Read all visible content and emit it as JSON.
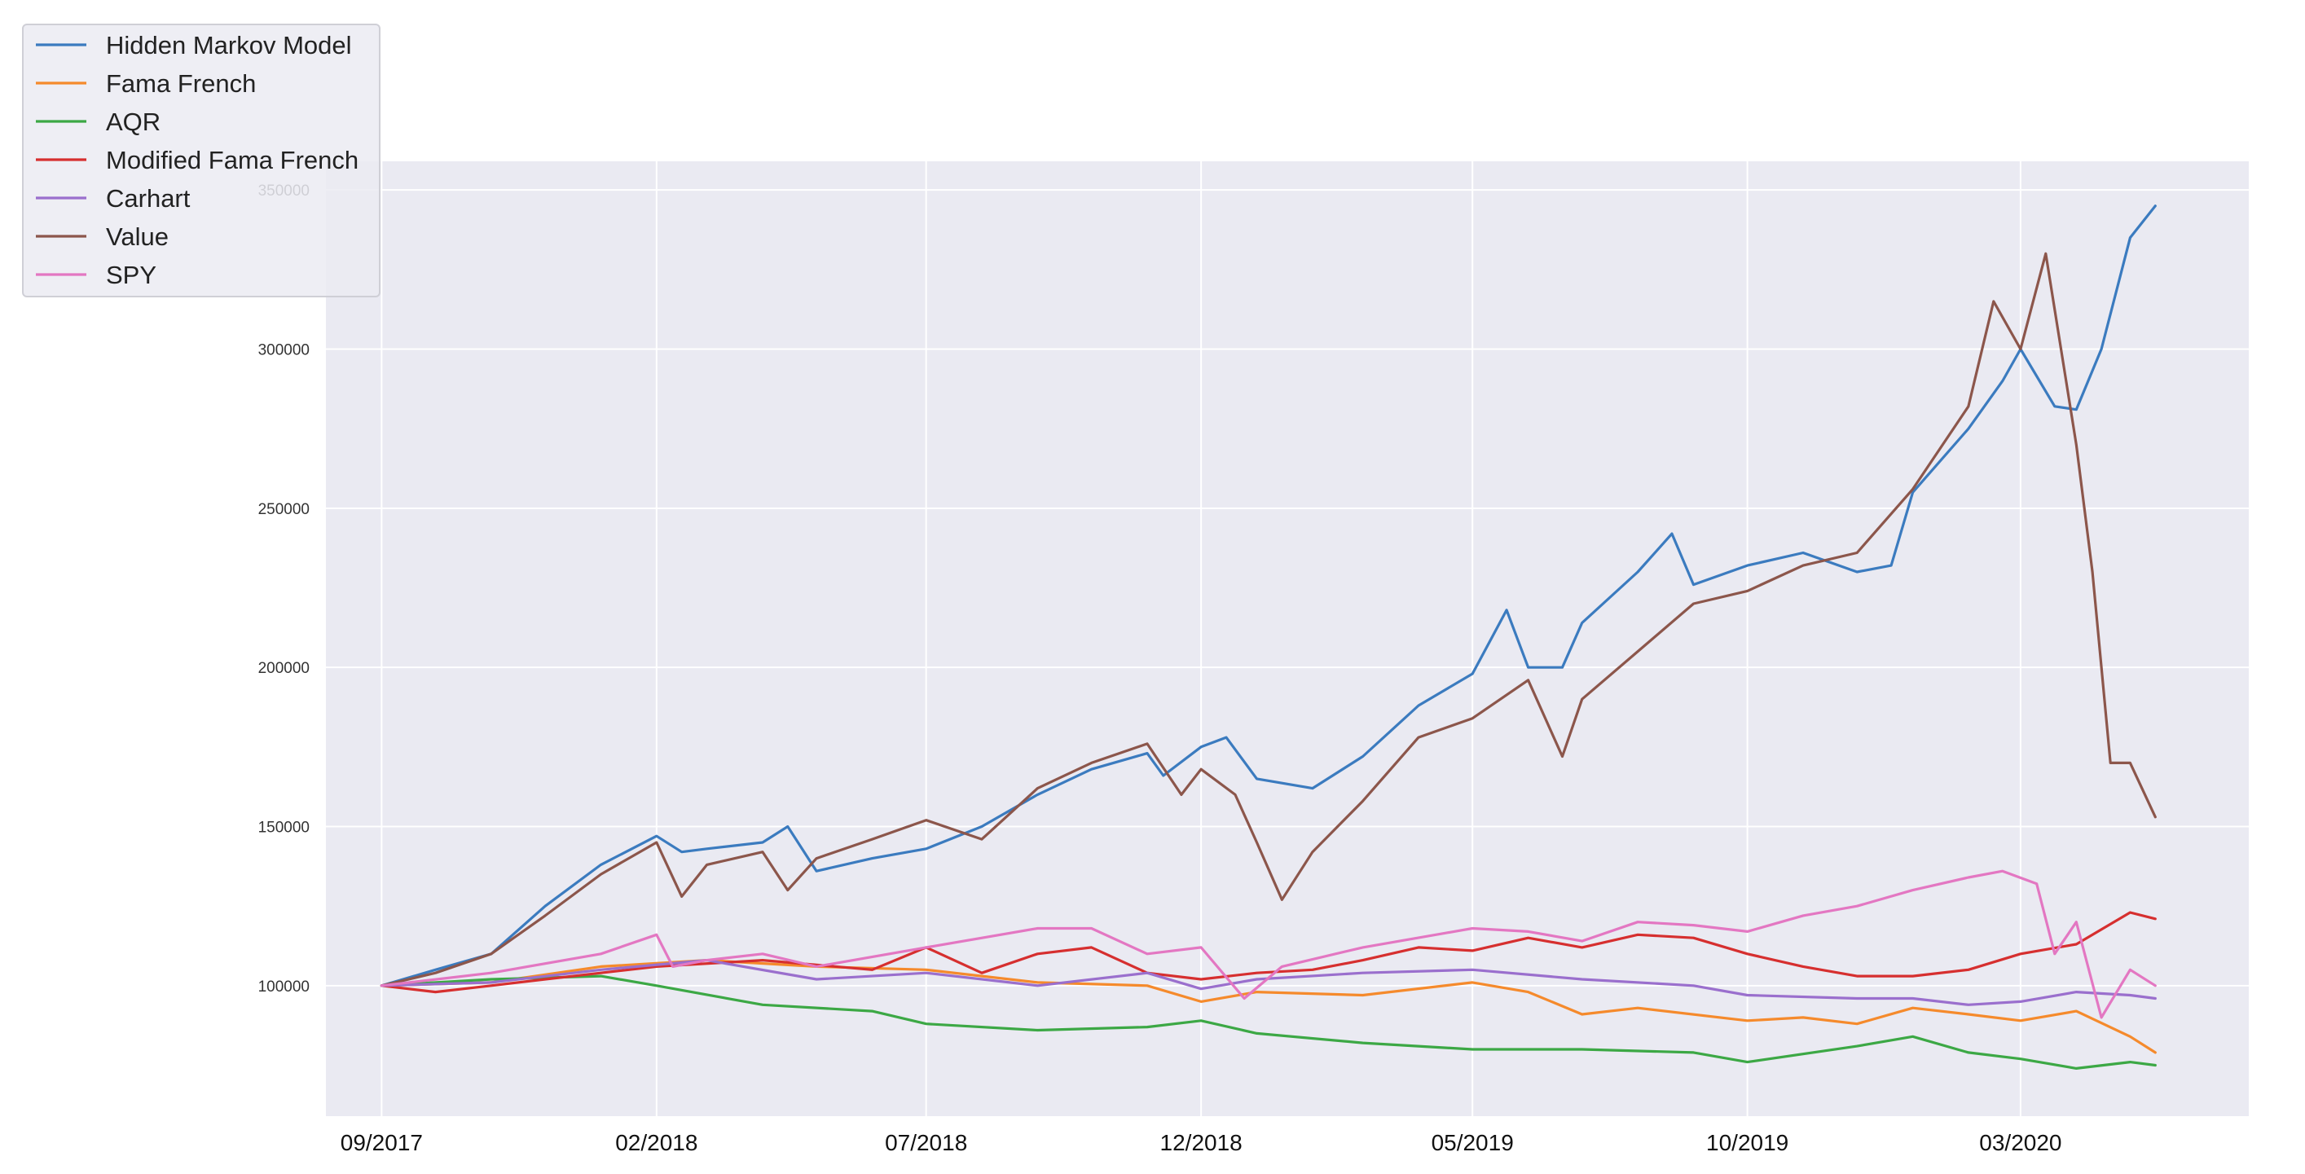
{
  "chart_data": {
    "type": "line",
    "title": "",
    "xlabel": "",
    "ylabel": "",
    "x_axis": {
      "range": [
        "2017-08-01",
        "2020-07-06"
      ],
      "ticks": [
        {
          "date": "2017-09-01",
          "label": "09/2017"
        },
        {
          "date": "2018-02-01",
          "label": "02/2018"
        },
        {
          "date": "2018-07-01",
          "label": "07/2018"
        },
        {
          "date": "2018-12-01",
          "label": "12/2018"
        },
        {
          "date": "2019-05-01",
          "label": "05/2019"
        },
        {
          "date": "2019-10-01",
          "label": "10/2019"
        },
        {
          "date": "2020-03-01",
          "label": "03/2020"
        }
      ]
    },
    "y_axis": {
      "range": [
        59000,
        359000
      ],
      "ticks": [
        {
          "value": 100000,
          "label": "100000"
        },
        {
          "value": 150000,
          "label": "150000"
        },
        {
          "value": 200000,
          "label": "200000"
        },
        {
          "value": 250000,
          "label": "250000"
        },
        {
          "value": 300000,
          "label": "300000"
        },
        {
          "value": 350000,
          "label": "350000"
        }
      ]
    },
    "grid": true,
    "legend_position": "top-left",
    "series": [
      {
        "name": "Hidden Markov Model",
        "color": "#3b7bbf",
        "x": [
          "2017-09-01",
          "2017-10-01",
          "2017-11-01",
          "2017-12-01",
          "2018-01-01",
          "2018-02-01",
          "2018-02-15",
          "2018-03-01",
          "2018-04-01",
          "2018-04-15",
          "2018-05-01",
          "2018-06-01",
          "2018-07-01",
          "2018-08-01",
          "2018-09-01",
          "2018-10-01",
          "2018-11-01",
          "2018-11-10",
          "2018-12-01",
          "2018-12-15",
          "2019-01-01",
          "2019-02-01",
          "2019-03-01",
          "2019-04-01",
          "2019-05-01",
          "2019-05-20",
          "2019-06-01",
          "2019-06-20",
          "2019-07-01",
          "2019-08-01",
          "2019-08-20",
          "2019-09-01",
          "2019-10-01",
          "2019-11-01",
          "2019-12-01",
          "2019-12-20",
          "2020-01-01",
          "2020-02-01",
          "2020-02-20",
          "2020-03-01",
          "2020-03-20",
          "2020-04-01",
          "2020-04-15",
          "2020-05-01",
          "2020-05-15"
        ],
        "y": [
          100000,
          105000,
          110000,
          125000,
          138000,
          147000,
          142000,
          143000,
          145000,
          150000,
          136000,
          140000,
          143000,
          150000,
          160000,
          168000,
          173000,
          166000,
          175000,
          178000,
          165000,
          162000,
          172000,
          188000,
          198000,
          218000,
          200000,
          200000,
          214000,
          230000,
          242000,
          226000,
          232000,
          236000,
          230000,
          232000,
          255000,
          275000,
          290000,
          300000,
          282000,
          281000,
          300000,
          335000,
          345000
        ]
      },
      {
        "name": "Fama French",
        "color": "#f58a2c",
        "x": [
          "2017-09-01",
          "2017-11-01",
          "2018-01-01",
          "2018-03-01",
          "2018-05-01",
          "2018-07-01",
          "2018-09-01",
          "2018-11-01",
          "2018-12-01",
          "2019-01-01",
          "2019-03-01",
          "2019-05-01",
          "2019-06-01",
          "2019-07-01",
          "2019-08-01",
          "2019-10-01",
          "2019-11-01",
          "2019-12-01",
          "2020-01-01",
          "2020-02-01",
          "2020-03-01",
          "2020-04-01",
          "2020-05-01",
          "2020-05-15"
        ],
        "y": [
          100000,
          101000,
          106000,
          108000,
          106000,
          105000,
          101000,
          100000,
          95000,
          98000,
          97000,
          101000,
          98000,
          91000,
          93000,
          89000,
          90000,
          88000,
          93000,
          91000,
          89000,
          92000,
          84000,
          79000
        ]
      },
      {
        "name": "AQR",
        "color": "#3ca845",
        "x": [
          "2017-09-01",
          "2017-11-01",
          "2018-01-01",
          "2018-02-01",
          "2018-04-01",
          "2018-06-01",
          "2018-07-01",
          "2018-09-01",
          "2018-11-01",
          "2018-12-01",
          "2019-01-01",
          "2019-03-01",
          "2019-05-01",
          "2019-07-01",
          "2019-09-01",
          "2019-10-01",
          "2019-12-01",
          "2020-01-01",
          "2020-02-01",
          "2020-03-01",
          "2020-04-01",
          "2020-05-01",
          "2020-05-15"
        ],
        "y": [
          100000,
          102000,
          103000,
          100000,
          94000,
          92000,
          88000,
          86000,
          87000,
          89000,
          85000,
          82000,
          80000,
          80000,
          79000,
          76000,
          81000,
          84000,
          79000,
          77000,
          74000,
          76000,
          75000
        ]
      },
      {
        "name": "Modified Fama French",
        "color": "#d62f2f",
        "x": [
          "2017-09-01",
          "2017-10-01",
          "2017-11-01",
          "2017-12-01",
          "2018-01-01",
          "2018-02-01",
          "2018-04-01",
          "2018-06-01",
          "2018-07-01",
          "2018-08-01",
          "2018-09-01",
          "2018-10-01",
          "2018-11-01",
          "2018-12-01",
          "2019-01-01",
          "2019-02-01",
          "2019-03-01",
          "2019-04-01",
          "2019-05-01",
          "2019-06-01",
          "2019-07-01",
          "2019-08-01",
          "2019-09-01",
          "2019-10-01",
          "2019-11-01",
          "2019-12-01",
          "2020-01-01",
          "2020-02-01",
          "2020-03-01",
          "2020-04-01",
          "2020-05-01",
          "2020-05-15"
        ],
        "y": [
          100000,
          98000,
          100000,
          102000,
          104000,
          106000,
          108000,
          105000,
          112000,
          104000,
          110000,
          112000,
          104000,
          102000,
          104000,
          105000,
          108000,
          112000,
          111000,
          115000,
          112000,
          116000,
          115000,
          110000,
          106000,
          103000,
          103000,
          105000,
          110000,
          113000,
          123000,
          121000
        ]
      },
      {
        "name": "Carhart",
        "color": "#9a6fcd",
        "x": [
          "2017-09-01",
          "2017-11-01",
          "2018-01-01",
          "2018-03-01",
          "2018-05-01",
          "2018-07-01",
          "2018-09-01",
          "2018-11-01",
          "2018-12-01",
          "2019-01-01",
          "2019-03-01",
          "2019-05-01",
          "2019-07-01",
          "2019-09-01",
          "2019-10-01",
          "2019-12-01",
          "2020-01-01",
          "2020-02-01",
          "2020-03-01",
          "2020-04-01",
          "2020-05-01",
          "2020-05-15"
        ],
        "y": [
          100000,
          101000,
          105000,
          108000,
          102000,
          104000,
          100000,
          104000,
          99000,
          102000,
          104000,
          105000,
          102000,
          100000,
          97000,
          96000,
          96000,
          94000,
          95000,
          98000,
          97000,
          96000
        ]
      },
      {
        "name": "Value",
        "color": "#8c564b",
        "x": [
          "2017-09-01",
          "2017-10-01",
          "2017-11-01",
          "2017-12-01",
          "2018-01-01",
          "2018-02-01",
          "2018-02-15",
          "2018-03-01",
          "2018-04-01",
          "2018-04-15",
          "2018-05-01",
          "2018-06-01",
          "2018-07-01",
          "2018-08-01",
          "2018-09-01",
          "2018-10-01",
          "2018-11-01",
          "2018-11-20",
          "2018-12-01",
          "2018-12-20",
          "2019-01-01",
          "2019-01-15",
          "2019-02-01",
          "2019-03-01",
          "2019-04-01",
          "2019-05-01",
          "2019-06-01",
          "2019-06-20",
          "2019-07-01",
          "2019-08-01",
          "2019-09-01",
          "2019-10-01",
          "2019-11-01",
          "2019-12-01",
          "2020-01-01",
          "2020-02-01",
          "2020-02-15",
          "2020-03-01",
          "2020-03-15",
          "2020-04-01",
          "2020-04-10",
          "2020-04-20",
          "2020-05-01",
          "2020-05-15"
        ],
        "y": [
          100000,
          104000,
          110000,
          122000,
          135000,
          145000,
          128000,
          138000,
          142000,
          130000,
          140000,
          146000,
          152000,
          146000,
          162000,
          170000,
          176000,
          160000,
          168000,
          160000,
          145000,
          127000,
          142000,
          158000,
          178000,
          184000,
          196000,
          172000,
          190000,
          205000,
          220000,
          224000,
          232000,
          236000,
          256000,
          282000,
          315000,
          300000,
          330000,
          270000,
          230000,
          170000,
          170000,
          153000
        ]
      },
      {
        "name": "SPY",
        "color": "#e377c2",
        "x": [
          "2017-09-01",
          "2017-11-01",
          "2018-01-01",
          "2018-02-01",
          "2018-02-10",
          "2018-03-01",
          "2018-04-01",
          "2018-05-01",
          "2018-07-01",
          "2018-09-01",
          "2018-10-01",
          "2018-11-01",
          "2018-12-01",
          "2018-12-25",
          "2019-01-15",
          "2019-03-01",
          "2019-05-01",
          "2019-06-01",
          "2019-07-01",
          "2019-08-01",
          "2019-09-01",
          "2019-10-01",
          "2019-11-01",
          "2019-12-01",
          "2020-01-01",
          "2020-02-01",
          "2020-02-20",
          "2020-03-10",
          "2020-03-20",
          "2020-04-01",
          "2020-04-15",
          "2020-05-01",
          "2020-05-15"
        ],
        "y": [
          100000,
          104000,
          110000,
          116000,
          106000,
          108000,
          110000,
          106000,
          112000,
          118000,
          118000,
          110000,
          112000,
          96000,
          106000,
          112000,
          118000,
          117000,
          114000,
          120000,
          119000,
          117000,
          122000,
          125000,
          130000,
          134000,
          136000,
          132000,
          110000,
          120000,
          90000,
          105000,
          100000
        ]
      }
    ]
  }
}
